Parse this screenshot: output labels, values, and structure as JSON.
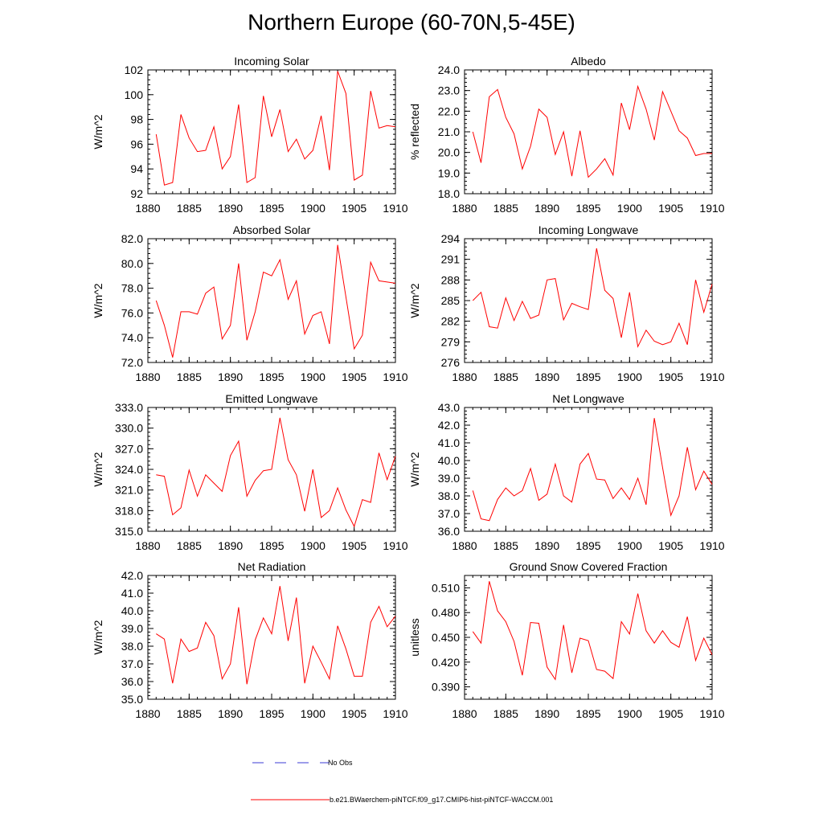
{
  "title": "Northern Europe (60-70N,5-45E)",
  "colors": {
    "model": "#ff0000",
    "obs": "#3b3bd6",
    "axis": "#000000"
  },
  "legend": {
    "obs_label": "No Obs",
    "model_label": "b.e21.BWaerchem-piNTCF.f09_g17.CMIP6-hist-piNTCF-WACCM.001"
  },
  "chart_data": [
    {
      "type": "line",
      "title": "Incoming Solar",
      "ylabel": "W/m^2",
      "xlim": [
        1880,
        1910
      ],
      "ylim": [
        92,
        102
      ],
      "yticks": [
        92,
        94,
        96,
        98,
        100,
        102
      ],
      "ytick_labels": [
        "92",
        "94",
        "96",
        "98",
        "100",
        "102"
      ],
      "xticks": [
        1880,
        1885,
        1890,
        1895,
        1900,
        1905,
        1910
      ],
      "xtick_labels": [
        "1880",
        "1885",
        "1890",
        "1895",
        "1900",
        "1905",
        "1910"
      ],
      "x": [
        1881,
        1882,
        1883,
        1884,
        1885,
        1886,
        1887,
        1888,
        1889,
        1890,
        1891,
        1892,
        1893,
        1894,
        1895,
        1896,
        1897,
        1898,
        1899,
        1900,
        1901,
        1902,
        1903,
        1904,
        1905,
        1906,
        1907,
        1908,
        1909,
        1910
      ],
      "series": [
        {
          "values": [
            96.8,
            92.7,
            92.9,
            98.4,
            96.5,
            95.4,
            95.5,
            97.4,
            94.0,
            95.0,
            99.2,
            92.9,
            93.3,
            99.9,
            96.6,
            98.8,
            95.4,
            96.4,
            94.8,
            95.5,
            98.3,
            93.9,
            101.9,
            100.1,
            93.1,
            93.5,
            100.3,
            97.3,
            97.5,
            97.4
          ]
        }
      ]
    },
    {
      "type": "line",
      "title": "Albedo",
      "ylabel": "% reflected",
      "xlim": [
        1880,
        1910
      ],
      "ylim": [
        18,
        24
      ],
      "yticks": [
        18,
        19,
        20,
        21,
        22,
        23,
        24
      ],
      "ytick_labels": [
        "18.0",
        "19.0",
        "20.0",
        "21.0",
        "22.0",
        "23.0",
        "24.0"
      ],
      "xticks": [
        1880,
        1885,
        1890,
        1895,
        1900,
        1905,
        1910
      ],
      "xtick_labels": [
        "1880",
        "1885",
        "1890",
        "1895",
        "1900",
        "1905",
        "1910"
      ],
      "x": [
        1881,
        1882,
        1883,
        1884,
        1885,
        1886,
        1887,
        1888,
        1889,
        1890,
        1891,
        1892,
        1893,
        1894,
        1895,
        1896,
        1897,
        1898,
        1899,
        1900,
        1901,
        1902,
        1903,
        1904,
        1905,
        1906,
        1907,
        1908,
        1909,
        1910
      ],
      "series": [
        {
          "values": [
            21.0,
            19.5,
            22.7,
            23.05,
            21.7,
            20.9,
            19.2,
            20.3,
            22.1,
            21.7,
            19.9,
            21.0,
            18.85,
            21.05,
            18.8,
            19.2,
            19.7,
            18.9,
            22.4,
            21.1,
            23.2,
            22.1,
            20.6,
            22.95,
            22.0,
            21.05,
            20.7,
            19.85,
            19.95,
            19.95
          ]
        }
      ]
    },
    {
      "type": "line",
      "title": "Absorbed Solar",
      "ylabel": "W/m^2",
      "xlim": [
        1880,
        1910
      ],
      "ylim": [
        72,
        82
      ],
      "yticks": [
        72,
        74,
        76,
        78,
        80,
        82
      ],
      "ytick_labels": [
        "72.0",
        "74.0",
        "76.0",
        "78.0",
        "80.0",
        "82.0"
      ],
      "xticks": [
        1880,
        1885,
        1890,
        1895,
        1900,
        1905,
        1910
      ],
      "xtick_labels": [
        "1880",
        "1885",
        "1890",
        "1895",
        "1900",
        "1905",
        "1910"
      ],
      "x": [
        1881,
        1882,
        1883,
        1884,
        1885,
        1886,
        1887,
        1888,
        1889,
        1890,
        1891,
        1892,
        1893,
        1894,
        1895,
        1896,
        1897,
        1898,
        1899,
        1900,
        1901,
        1902,
        1903,
        1904,
        1905,
        1906,
        1907,
        1908,
        1909,
        1910
      ],
      "series": [
        {
          "values": [
            77.0,
            75.0,
            72.4,
            76.1,
            76.1,
            75.9,
            77.6,
            78.1,
            73.9,
            75.0,
            80.0,
            73.8,
            76.1,
            79.3,
            79.0,
            80.3,
            77.1,
            78.6,
            74.3,
            75.8,
            76.1,
            73.5,
            81.5,
            77.3,
            73.1,
            74.2,
            80.1,
            78.6,
            78.5,
            78.4
          ]
        }
      ]
    },
    {
      "type": "line",
      "title": "Incoming Longwave",
      "ylabel": "W/m^2",
      "xlim": [
        1880,
        1910
      ],
      "ylim": [
        276,
        294
      ],
      "yticks": [
        276,
        279,
        282,
        285,
        288,
        291,
        294
      ],
      "ytick_labels": [
        "276",
        "279",
        "282",
        "285",
        "288",
        "291",
        "294"
      ],
      "xticks": [
        1880,
        1885,
        1890,
        1895,
        1900,
        1905,
        1910
      ],
      "xtick_labels": [
        "1880",
        "1885",
        "1890",
        "1895",
        "1900",
        "1905",
        "1910"
      ],
      "x": [
        1881,
        1882,
        1883,
        1884,
        1885,
        1886,
        1887,
        1888,
        1889,
        1890,
        1891,
        1892,
        1893,
        1894,
        1895,
        1896,
        1897,
        1898,
        1899,
        1900,
        1901,
        1902,
        1903,
        1904,
        1905,
        1906,
        1907,
        1908,
        1909,
        1910
      ],
      "series": [
        {
          "values": [
            285.0,
            286.2,
            281.2,
            281.0,
            285.4,
            282.1,
            284.9,
            282.4,
            282.9,
            288.0,
            288.2,
            282.2,
            284.6,
            284.1,
            283.7,
            292.6,
            286.5,
            285.3,
            279.6,
            286.2,
            278.3,
            280.7,
            279.1,
            278.6,
            279.0,
            281.7,
            278.6,
            288.0,
            283.3,
            287.4
          ]
        }
      ]
    },
    {
      "type": "line",
      "title": "Emitted Longwave",
      "ylabel": "W/m^2",
      "xlim": [
        1880,
        1910
      ],
      "ylim": [
        315,
        333
      ],
      "yticks": [
        315,
        318,
        321,
        324,
        327,
        330,
        333
      ],
      "ytick_labels": [
        "315.0",
        "318.0",
        "321.0",
        "324.0",
        "327.0",
        "330.0",
        "333.0"
      ],
      "xticks": [
        1880,
        1885,
        1890,
        1895,
        1900,
        1905,
        1910
      ],
      "xtick_labels": [
        "1880",
        "1885",
        "1890",
        "1895",
        "1900",
        "1905",
        "1910"
      ],
      "x": [
        1881,
        1882,
        1883,
        1884,
        1885,
        1886,
        1887,
        1888,
        1889,
        1890,
        1891,
        1892,
        1893,
        1894,
        1895,
        1896,
        1897,
        1898,
        1899,
        1900,
        1901,
        1902,
        1903,
        1904,
        1905,
        1906,
        1907,
        1908,
        1909,
        1910
      ],
      "series": [
        {
          "values": [
            323.2,
            323.0,
            317.4,
            318.4,
            323.9,
            320.1,
            323.2,
            322.0,
            320.8,
            326.0,
            328.1,
            320.1,
            322.4,
            323.8,
            324.0,
            331.5,
            325.4,
            323.2,
            317.9,
            324.0,
            317.0,
            318.0,
            321.3,
            318.1,
            315.7,
            319.6,
            319.2,
            326.4,
            322.5,
            325.9
          ]
        }
      ]
    },
    {
      "type": "line",
      "title": "Net Longwave",
      "ylabel": "W/m^2",
      "xlim": [
        1880,
        1910
      ],
      "ylim": [
        36,
        43
      ],
      "yticks": [
        36,
        37,
        38,
        39,
        40,
        41,
        42,
        43
      ],
      "ytick_labels": [
        "36.0",
        "37.0",
        "38.0",
        "39.0",
        "40.0",
        "41.0",
        "42.0",
        "43.0"
      ],
      "xticks": [
        1880,
        1885,
        1890,
        1895,
        1900,
        1905,
        1910
      ],
      "xtick_labels": [
        "1880",
        "1885",
        "1890",
        "1895",
        "1900",
        "1905",
        "1910"
      ],
      "x": [
        1881,
        1882,
        1883,
        1884,
        1885,
        1886,
        1887,
        1888,
        1889,
        1890,
        1891,
        1892,
        1893,
        1894,
        1895,
        1896,
        1897,
        1898,
        1899,
        1900,
        1901,
        1902,
        1903,
        1904,
        1905,
        1906,
        1907,
        1908,
        1909,
        1910
      ],
      "series": [
        {
          "values": [
            38.3,
            36.7,
            36.6,
            37.8,
            38.45,
            38.0,
            38.3,
            39.55,
            37.75,
            38.1,
            39.8,
            38.0,
            37.65,
            39.8,
            40.4,
            38.95,
            38.9,
            37.85,
            38.45,
            37.8,
            39.0,
            37.5,
            42.4,
            39.6,
            36.9,
            38.0,
            40.75,
            38.35,
            39.4,
            38.65
          ]
        }
      ]
    },
    {
      "type": "line",
      "title": "Net Radiation",
      "ylabel": "W/m^2",
      "xlim": [
        1880,
        1910
      ],
      "ylim": [
        35,
        42
      ],
      "yticks": [
        35,
        36,
        37,
        38,
        39,
        40,
        41,
        42
      ],
      "ytick_labels": [
        "35.0",
        "36.0",
        "37.0",
        "38.0",
        "39.0",
        "40.0",
        "41.0",
        "42.0"
      ],
      "xticks": [
        1880,
        1885,
        1890,
        1895,
        1900,
        1905,
        1910
      ],
      "xtick_labels": [
        "1880",
        "1885",
        "1890",
        "1895",
        "1900",
        "1905",
        "1910"
      ],
      "x": [
        1881,
        1882,
        1883,
        1884,
        1885,
        1886,
        1887,
        1888,
        1889,
        1890,
        1891,
        1892,
        1893,
        1894,
        1895,
        1896,
        1897,
        1898,
        1899,
        1900,
        1901,
        1902,
        1903,
        1904,
        1905,
        1906,
        1907,
        1908,
        1909,
        1910
      ],
      "series": [
        {
          "values": [
            38.7,
            38.4,
            35.9,
            38.4,
            37.7,
            37.9,
            39.35,
            38.6,
            36.15,
            37.0,
            40.2,
            35.85,
            38.35,
            39.6,
            38.7,
            41.4,
            38.3,
            40.75,
            35.9,
            38.0,
            37.1,
            36.15,
            39.15,
            37.85,
            36.3,
            36.3,
            39.35,
            40.25,
            39.1,
            39.7
          ]
        }
      ]
    },
    {
      "type": "line",
      "title": "Ground Snow Covered Fraction",
      "ylabel": "unitless",
      "xlim": [
        1880,
        1910
      ],
      "ylim": [
        0.375,
        0.525
      ],
      "yticks": [
        0.39,
        0.42,
        0.45,
        0.48,
        0.51
      ],
      "ytick_labels": [
        "0.390",
        "0.420",
        "0.450",
        "0.480",
        "0.510"
      ],
      "xticks": [
        1880,
        1885,
        1890,
        1895,
        1900,
        1905,
        1910
      ],
      "xtick_labels": [
        "1880",
        "1885",
        "1890",
        "1895",
        "1900",
        "1905",
        "1910"
      ],
      "x": [
        1881,
        1882,
        1883,
        1884,
        1885,
        1886,
        1887,
        1888,
        1889,
        1890,
        1891,
        1892,
        1893,
        1894,
        1895,
        1896,
        1897,
        1898,
        1899,
        1900,
        1901,
        1902,
        1903,
        1904,
        1905,
        1906,
        1907,
        1908,
        1909,
        1910
      ],
      "series": [
        {
          "values": [
            0.457,
            0.443,
            0.518,
            0.482,
            0.469,
            0.445,
            0.404,
            0.468,
            0.467,
            0.414,
            0.399,
            0.465,
            0.407,
            0.449,
            0.446,
            0.411,
            0.409,
            0.4,
            0.469,
            0.454,
            0.503,
            0.458,
            0.443,
            0.458,
            0.444,
            0.438,
            0.475,
            0.422,
            0.449,
            0.429
          ]
        }
      ]
    }
  ]
}
